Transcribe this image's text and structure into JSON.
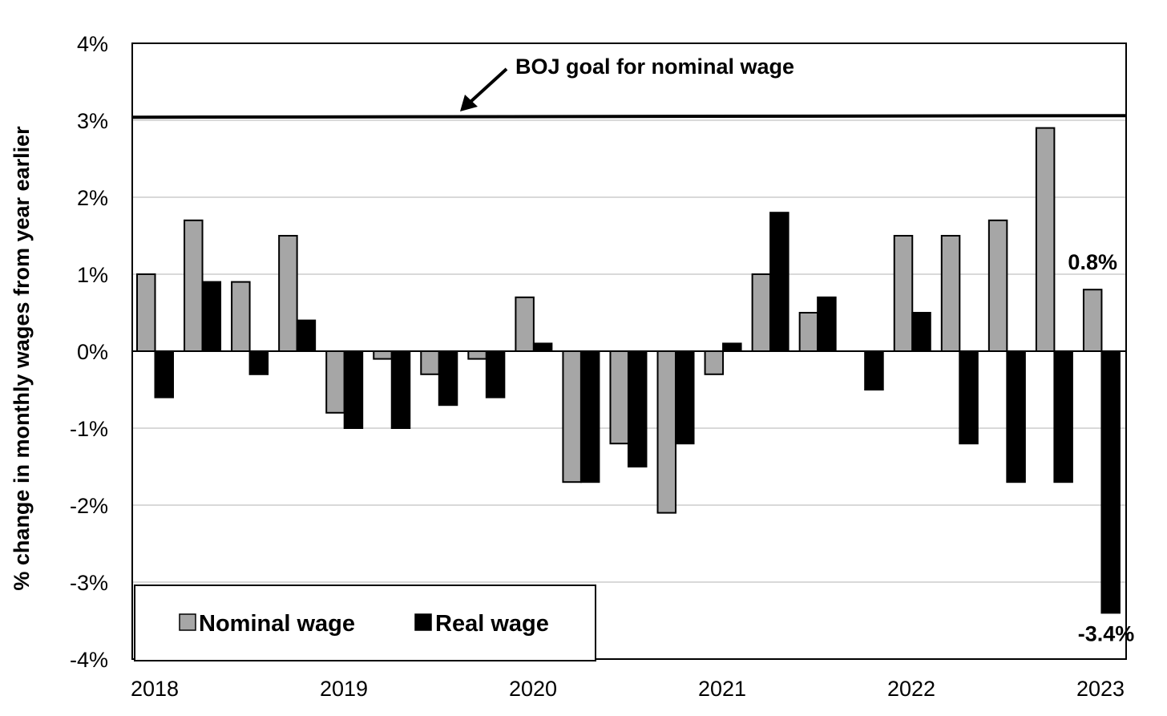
{
  "chart_data": {
    "type": "bar",
    "title": "",
    "xlabel": "",
    "ylabel": "% change in monthly wages from year earlier",
    "ylim": [
      -4,
      4
    ],
    "y_ticks": [
      "4%",
      "3%",
      "2%",
      "1%",
      "0%",
      "-1%",
      "-2%",
      "-3%",
      "-4%"
    ],
    "x_tick_labels": [
      "2018",
      "2019",
      "2020",
      "2021",
      "2022",
      "2023"
    ],
    "grid": true,
    "legend_position": "bottom-left",
    "categories": [
      "2018 Q1",
      "2018 Q2",
      "2018 Q3",
      "2018 Q4",
      "2019 Q1",
      "2019 Q2",
      "2019 Q3",
      "2019 Q4",
      "2020 Q1",
      "2020 Q2",
      "2020 Q3",
      "2020 Q4",
      "2021 Q1",
      "2021 Q2",
      "2021 Q3",
      "2021 Q4",
      "2022 Q1",
      "2022 Q2",
      "2022 Q3",
      "2022 Q4",
      "2023 Q1"
    ],
    "series": [
      {
        "name": "Nominal wage",
        "color": "#a6a6a6",
        "values": [
          1.0,
          1.7,
          0.9,
          1.5,
          -0.8,
          -0.1,
          -0.3,
          -0.1,
          0.7,
          -1.7,
          -1.2,
          -2.1,
          -0.3,
          1.0,
          0.5,
          0.0,
          1.5,
          1.5,
          1.7,
          2.9,
          0.8
        ]
      },
      {
        "name": "Real wage",
        "color": "#000000",
        "values": [
          -0.6,
          0.9,
          -0.3,
          0.4,
          -1.0,
          -1.0,
          -0.7,
          -0.6,
          0.1,
          -1.7,
          -1.5,
          -1.2,
          0.1,
          1.8,
          0.7,
          -0.5,
          0.5,
          -1.2,
          -1.7,
          -1.7,
          -3.4
        ]
      }
    ],
    "reference_line": {
      "value": 3.05,
      "label": "BOJ goal for nominal wage"
    },
    "data_labels": [
      {
        "series": "Nominal wage",
        "category": "2023 Q1",
        "text": "0.8%"
      },
      {
        "series": "Real wage",
        "category": "2023 Q1",
        "text": "-3.4%"
      }
    ]
  }
}
